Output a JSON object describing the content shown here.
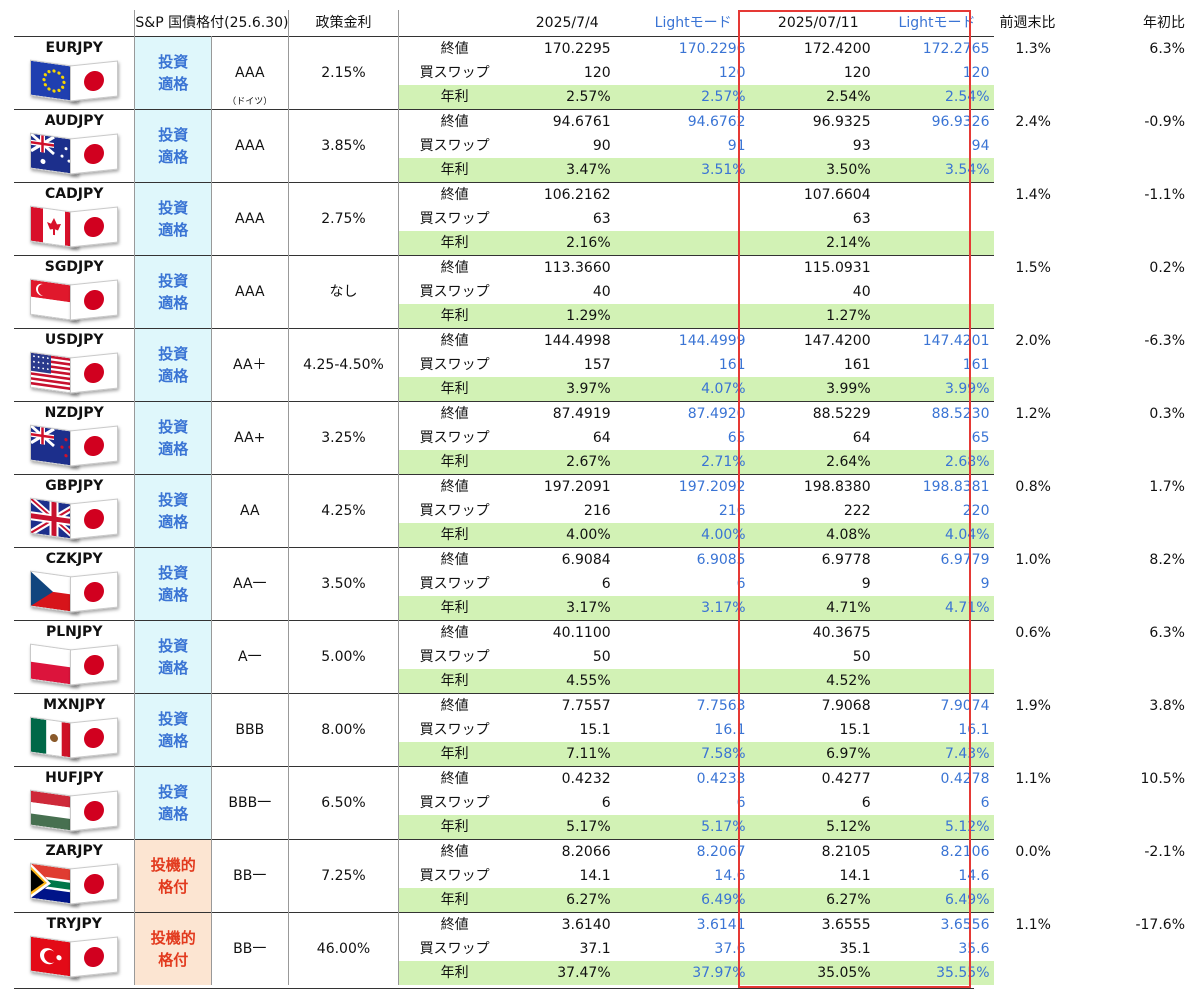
{
  "header": {
    "rating_title": "S&P 国債格付(25.6.30)",
    "policy_title": "政策金利",
    "date1": "2025/7/4",
    "light1": "Lightモード",
    "date2": "2025/07/11",
    "light2": "Lightモード",
    "weekly": "前週末比",
    "ytd": "年初比"
  },
  "labels": {
    "close": "終値",
    "swap": "買スワップ",
    "yield": "年利"
  },
  "colors": {
    "invest_bg": "#dff7fb",
    "invest_text": "#3a74d4",
    "spec_bg": "#fce5d2",
    "spec_text": "#e23a1e",
    "light_text": "#3a74d4",
    "yield_bg": "#d2f2b5",
    "highlight_border": "#e53935"
  },
  "rows": [
    {
      "pair": "EURJPY",
      "flag": "eu-flag-icon",
      "grade": [
        "投資",
        "適格"
      ],
      "spec": false,
      "rating": "AAA",
      "rating_note": "（ドイツ）",
      "policy": "2.15%",
      "close1": "170.2295",
      "close1_light": "170.2296",
      "swap1": "120",
      "swap1_light": "120",
      "yield1": "2.57%",
      "yield1_light": "2.57%",
      "close2": "172.4200",
      "close2_light": "172.2765",
      "swap2": "120",
      "swap2_light": "120",
      "yield2": "2.54%",
      "yield2_light": "2.54%",
      "weekly": "1.3%",
      "ytd": "6.3%"
    },
    {
      "pair": "AUDJPY",
      "flag": "au-flag-icon",
      "grade": [
        "投資",
        "適格"
      ],
      "spec": false,
      "rating": "AAA",
      "rating_note": "",
      "policy": "3.85%",
      "close1": "94.6761",
      "close1_light": "94.6762",
      "swap1": "90",
      "swap1_light": "91",
      "yield1": "3.47%",
      "yield1_light": "3.51%",
      "close2": "96.9325",
      "close2_light": "96.9326",
      "swap2": "93",
      "swap2_light": "94",
      "yield2": "3.50%",
      "yield2_light": "3.54%",
      "weekly": "2.4%",
      "ytd": "-0.9%"
    },
    {
      "pair": "CADJPY",
      "flag": "ca-flag-icon",
      "grade": [
        "投資",
        "適格"
      ],
      "spec": false,
      "rating": "AAA",
      "rating_note": "",
      "policy": "2.75%",
      "close1": "106.2162",
      "close1_light": "",
      "swap1": "63",
      "swap1_light": "",
      "yield1": "2.16%",
      "yield1_light": "",
      "close2": "107.6604",
      "close2_light": "",
      "swap2": "63",
      "swap2_light": "",
      "yield2": "2.14%",
      "yield2_light": "",
      "weekly": "1.4%",
      "ytd": "-1.1%"
    },
    {
      "pair": "SGDJPY",
      "flag": "sg-flag-icon",
      "grade": [
        "投資",
        "適格"
      ],
      "spec": false,
      "rating": "AAA",
      "rating_note": "",
      "policy": "なし",
      "close1": "113.3660",
      "close1_light": "",
      "swap1": "40",
      "swap1_light": "",
      "yield1": "1.29%",
      "yield1_light": "",
      "close2": "115.0931",
      "close2_light": "",
      "swap2": "40",
      "swap2_light": "",
      "yield2": "1.27%",
      "yield2_light": "",
      "weekly": "1.5%",
      "ytd": "0.2%"
    },
    {
      "pair": "USDJPY",
      "flag": "us-flag-icon",
      "grade": [
        "投資",
        "適格"
      ],
      "spec": false,
      "rating": "AA＋",
      "rating_note": "",
      "policy": "4.25-4.50%",
      "close1": "144.4998",
      "close1_light": "144.4999",
      "swap1": "157",
      "swap1_light": "161",
      "yield1": "3.97%",
      "yield1_light": "4.07%",
      "close2": "147.4200",
      "close2_light": "147.4201",
      "swap2": "161",
      "swap2_light": "161",
      "yield2": "3.99%",
      "yield2_light": "3.99%",
      "weekly": "2.0%",
      "ytd": "-6.3%"
    },
    {
      "pair": "NZDJPY",
      "flag": "nz-flag-icon",
      "grade": [
        "投資",
        "適格"
      ],
      "spec": false,
      "rating": "AA+",
      "rating_note": "",
      "policy": "3.25%",
      "close1": "87.4919",
      "close1_light": "87.4920",
      "swap1": "64",
      "swap1_light": "65",
      "yield1": "2.67%",
      "yield1_light": "2.71%",
      "close2": "88.5229",
      "close2_light": "88.5230",
      "swap2": "64",
      "swap2_light": "65",
      "yield2": "2.64%",
      "yield2_light": "2.68%",
      "weekly": "1.2%",
      "ytd": "0.3%"
    },
    {
      "pair": "GBPJPY",
      "flag": "gb-flag-icon",
      "grade": [
        "投資",
        "適格"
      ],
      "spec": false,
      "rating": "AA",
      "rating_note": "",
      "policy": "4.25%",
      "close1": "197.2091",
      "close1_light": "197.2092",
      "swap1": "216",
      "swap1_light": "216",
      "yield1": "4.00%",
      "yield1_light": "4.00%",
      "close2": "198.8380",
      "close2_light": "198.8381",
      "swap2": "222",
      "swap2_light": "220",
      "yield2": "4.08%",
      "yield2_light": "4.04%",
      "weekly": "0.8%",
      "ytd": "1.7%"
    },
    {
      "pair": "CZKJPY",
      "flag": "cz-flag-icon",
      "grade": [
        "投資",
        "適格"
      ],
      "spec": false,
      "rating": "AA一",
      "rating_note": "",
      "policy": "3.50%",
      "close1": "6.9084",
      "close1_light": "6.9085",
      "swap1": "6",
      "swap1_light": "6",
      "yield1": "3.17%",
      "yield1_light": "3.17%",
      "close2": "6.9778",
      "close2_light": "6.9779",
      "swap2": "9",
      "swap2_light": "9",
      "yield2": "4.71%",
      "yield2_light": "4.71%",
      "weekly": "1.0%",
      "ytd": "8.2%"
    },
    {
      "pair": "PLNJPY",
      "flag": "pl-flag-icon",
      "grade": [
        "投資",
        "適格"
      ],
      "spec": false,
      "rating": "A一",
      "rating_note": "",
      "policy": "5.00%",
      "close1": "40.1100",
      "close1_light": "",
      "swap1": "50",
      "swap1_light": "",
      "yield1": "4.55%",
      "yield1_light": "",
      "close2": "40.3675",
      "close2_light": "",
      "swap2": "50",
      "swap2_light": "",
      "yield2": "4.52%",
      "yield2_light": "",
      "weekly": "0.6%",
      "ytd": "6.3%"
    },
    {
      "pair": "MXNJPY",
      "flag": "mx-flag-icon",
      "grade": [
        "投資",
        "適格"
      ],
      "spec": false,
      "rating": "BBB",
      "rating_note": "",
      "policy": "8.00%",
      "close1": "7.7557",
      "close1_light": "7.7563",
      "swap1": "15.1",
      "swap1_light": "16.1",
      "yield1": "7.11%",
      "yield1_light": "7.58%",
      "close2": "7.9068",
      "close2_light": "7.9074",
      "swap2": "15.1",
      "swap2_light": "16.1",
      "yield2": "6.97%",
      "yield2_light": "7.43%",
      "weekly": "1.9%",
      "ytd": "3.8%"
    },
    {
      "pair": "HUFJPY",
      "flag": "hu-flag-icon",
      "grade": [
        "投資",
        "適格"
      ],
      "spec": false,
      "rating": "BBB一",
      "rating_note": "",
      "policy": "6.50%",
      "close1": "0.4232",
      "close1_light": "0.4233",
      "swap1": "6",
      "swap1_light": "6",
      "yield1": "5.17%",
      "yield1_light": "5.17%",
      "close2": "0.4277",
      "close2_light": "0.4278",
      "swap2": "6",
      "swap2_light": "6",
      "yield2": "5.12%",
      "yield2_light": "5.12%",
      "weekly": "1.1%",
      "ytd": "10.5%"
    },
    {
      "pair": "ZARJPY",
      "flag": "za-flag-icon",
      "grade": [
        "投機的",
        "格付"
      ],
      "spec": true,
      "rating": "BB一",
      "rating_note": "",
      "policy": "7.25%",
      "close1": "8.2066",
      "close1_light": "8.2067",
      "swap1": "14.1",
      "swap1_light": "14.6",
      "yield1": "6.27%",
      "yield1_light": "6.49%",
      "close2": "8.2105",
      "close2_light": "8.2106",
      "swap2": "14.1",
      "swap2_light": "14.6",
      "yield2": "6.27%",
      "yield2_light": "6.49%",
      "weekly": "0.0%",
      "ytd": "-2.1%"
    },
    {
      "pair": "TRYJPY",
      "flag": "tr-flag-icon",
      "grade": [
        "投機的",
        "格付"
      ],
      "spec": true,
      "rating": "BB一",
      "rating_note": "",
      "policy": "46.00%",
      "close1": "3.6140",
      "close1_light": "3.6141",
      "swap1": "37.1",
      "swap1_light": "37.6",
      "yield1": "37.47%",
      "yield1_light": "37.97%",
      "close2": "3.6555",
      "close2_light": "3.6556",
      "swap2": "35.1",
      "swap2_light": "35.6",
      "yield2": "35.05%",
      "yield2_light": "35.55%",
      "weekly": "1.1%",
      "ytd": "-17.6%"
    }
  ]
}
